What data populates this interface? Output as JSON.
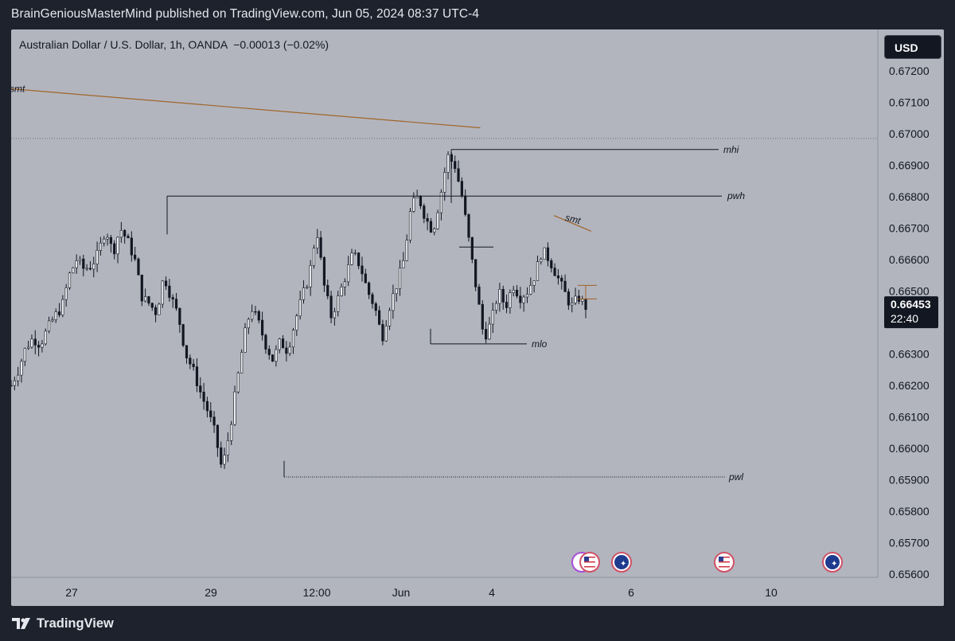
{
  "header": {
    "publish_text": "BrainGeniousMasterMind published on TradingView.com, Jun 05, 2024 08:37 UTC-4"
  },
  "legend": {
    "symbol_text": "Australian Dollar / U.S. Dollar, 1h, OANDA  −0.00013 (−0.02%)"
  },
  "currency": {
    "label": "USD"
  },
  "footer": {
    "brand": "TradingView"
  },
  "chart_data": {
    "type": "candlestick",
    "title": "Australian Dollar / U.S. Dollar, 1h, OANDA",
    "change_text": "−0.00013 (−0.02%)",
    "currency": "USD",
    "ylim": [
      0.6556,
      0.6727
    ],
    "y_ticks": [
      "0.67200",
      "0.67100",
      "0.67000",
      "0.66900",
      "0.66800",
      "0.66700",
      "0.66600",
      "0.66500",
      "0.66400",
      "0.66300",
      "0.66200",
      "0.66100",
      "0.66000",
      "0.65900",
      "0.65800",
      "0.65700",
      "0.65600"
    ],
    "x_ticks": [
      "27",
      "29",
      "12:00",
      "Jun",
      "4",
      "6",
      "10"
    ],
    "last_price": "0.66453",
    "countdown": "22:40",
    "close_path": [
      [
        "27",
        0.662
      ],
      [
        null,
        0.6625
      ],
      [
        null,
        0.6632
      ],
      [
        null,
        0.6635
      ],
      [
        null,
        0.6633
      ],
      [
        null,
        0.6638
      ],
      [
        null,
        0.6642
      ],
      [
        null,
        0.6645
      ],
      [
        null,
        0.6655
      ],
      [
        null,
        0.666
      ],
      [
        null,
        0.6657
      ],
      [
        null,
        0.6658
      ],
      [
        null,
        0.6662
      ],
      [
        null,
        0.667
      ],
      [
        null,
        0.6662
      ],
      [
        null,
        0.667
      ],
      [
        null,
        0.6666
      ],
      [
        null,
        0.666
      ],
      [
        "29",
        0.6648
      ],
      [
        null,
        0.6646
      ],
      [
        null,
        0.6643
      ],
      [
        null,
        0.6655
      ],
      [
        null,
        0.6648
      ],
      [
        null,
        0.6642
      ],
      [
        null,
        0.663
      ],
      [
        null,
        0.6625
      ],
      [
        null,
        0.6618
      ],
      [
        null,
        0.6612
      ],
      [
        null,
        0.6605
      ],
      [
        null,
        0.6593
      ],
      [
        null,
        0.6605
      ],
      [
        null,
        0.662
      ],
      [
        null,
        0.6635
      ],
      [
        null,
        0.6645
      ],
      [
        null,
        0.664
      ],
      [
        "12:00",
        0.6633
      ],
      [
        null,
        0.6628
      ],
      [
        null,
        0.6634
      ],
      [
        null,
        0.6631
      ],
      [
        null,
        0.664
      ],
      [
        null,
        0.6648
      ],
      [
        null,
        0.6655
      ],
      [
        null,
        0.667
      ],
      [
        null,
        0.6652
      ],
      [
        null,
        0.6642
      ],
      [
        null,
        0.6648
      ],
      [
        null,
        0.6655
      ],
      [
        null,
        0.6662
      ],
      [
        null,
        0.6658
      ],
      [
        null,
        0.665
      ],
      [
        null,
        0.6645
      ],
      [
        null,
        0.6635
      ],
      [
        "Jun",
        0.6645
      ],
      [
        null,
        0.6652
      ],
      [
        null,
        0.666
      ],
      [
        null,
        0.6677
      ],
      [
        null,
        0.668
      ],
      [
        null,
        0.6673
      ],
      [
        null,
        0.6669
      ],
      [
        null,
        0.668
      ],
      [
        null,
        0.6693
      ],
      [
        null,
        0.669
      ],
      [
        null,
        0.668
      ],
      [
        "4",
        0.6665
      ],
      [
        null,
        0.665
      ],
      [
        null,
        0.6635
      ],
      [
        null,
        0.664
      ],
      [
        null,
        0.665
      ],
      [
        null,
        0.6645
      ],
      [
        null,
        0.6652
      ],
      [
        null,
        0.6648
      ],
      [
        null,
        0.665
      ],
      [
        null,
        0.6655
      ],
      [
        null,
        0.6663
      ],
      [
        null,
        0.666
      ],
      [
        null,
        0.6655
      ],
      [
        null,
        0.665
      ],
      [
        null,
        0.6645
      ],
      [
        null,
        0.6648
      ],
      [
        null,
        0.6645
      ]
    ],
    "lines": [
      {
        "label": "smt",
        "color": "#a0652a",
        "from": {
          "x_frac": 0.0,
          "price": 0.67143
        },
        "to": {
          "x_frac": 0.503,
          "price": 0.67019
        }
      },
      {
        "label": "smt",
        "color": "#a0652a",
        "short": true,
        "from": {
          "x_frac": 0.582,
          "price": 0.6674
        },
        "to": {
          "x_frac": 0.622,
          "price": 0.6669
        }
      },
      {
        "label": "mhi",
        "color": "#131722",
        "price": 0.6695
      },
      {
        "label": "pwh",
        "color": "#131722",
        "price": 0.66802
      },
      {
        "label": "mlo",
        "color": "#131722",
        "price": 0.66332
      },
      {
        "label": "pwl",
        "color": "#131722",
        "price": 0.65909,
        "dashed": true
      }
    ],
    "top_dotted_price": 0.66985,
    "events": [
      {
        "flag": "us",
        "group": "multi"
      },
      {
        "flag": "au"
      },
      {
        "flag": "us"
      },
      {
        "flag": "au"
      }
    ]
  }
}
